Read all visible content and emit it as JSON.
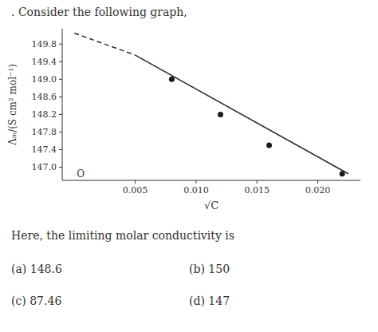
{
  "chart_data": {
    "type": "scatter",
    "title": ". Consider the following graph,",
    "x_label": "√C",
    "y_label": "Λₘ/(S cm² mol⁻¹)",
    "xlim": [
      -0.001,
      0.0235
    ],
    "ylim": [
      146.7,
      150.15
    ],
    "xticks": [
      0.005,
      {
        "value": 0.01,
        "label": "0.010"
      },
      0.015,
      {
        "value": 0.02,
        "label": "0.020"
      }
    ],
    "yticks": [
      {
        "value": 147.0,
        "label": "147.0"
      },
      147.4,
      147.8,
      148.2,
      148.6,
      {
        "value": 149.0,
        "label": "149.0"
      },
      149.4,
      149.8
    ],
    "grid": false,
    "series": [
      {
        "type": "scatter",
        "marker": "circle",
        "color": "#1a1a1a",
        "x": [
          0.008,
          0.012,
          0.016,
          0.022
        ],
        "values": [
          149.0,
          148.2,
          147.5,
          146.85
        ]
      },
      {
        "type": "line",
        "line_style": "solid",
        "color": "#2a2a2a",
        "x": [
          0.005,
          0.0225
        ],
        "values": [
          149.55,
          146.85
        ]
      },
      {
        "type": "line",
        "line_style": "dashed",
        "color": "#2a2a2a",
        "x": [
          0.0,
          0.005
        ],
        "values": [
          150.05,
          149.55
        ]
      }
    ],
    "annotations": [
      {
        "text": "O",
        "x": 0.0
      },
      {
        "text": "Here, the limiting molar conductivity is"
      },
      {
        "text": "(a) 148.6"
      },
      {
        "text": "(b) 150"
      },
      {
        "text": "(c) 87.46"
      },
      {
        "text": "(d) 147"
      }
    ]
  }
}
